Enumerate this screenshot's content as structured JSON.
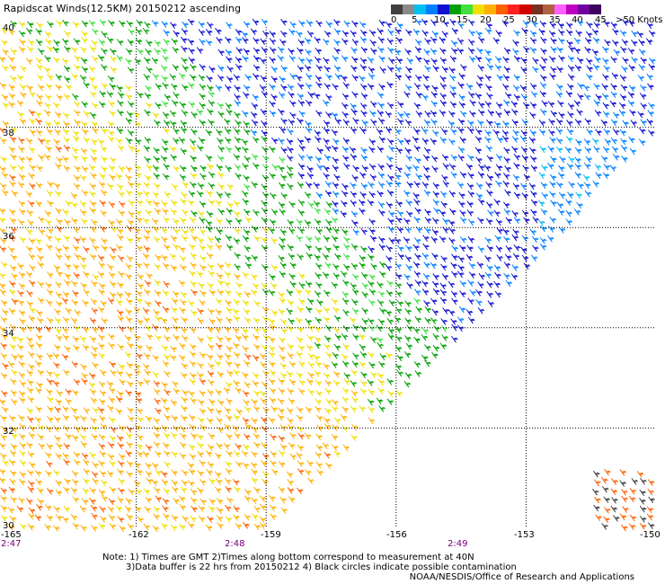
{
  "title": "Rapidscat Winds(12.5KM) 20150212 ascending",
  "colorbar": {
    "colors": [
      "#404040",
      "#8a8a8a",
      "#00c0f0",
      "#0080ff",
      "#1010d0",
      "#00a000",
      "#40e040",
      "#f0e000",
      "#ffb000",
      "#ff6000",
      "#ff2020",
      "#d00000",
      "#7a3020",
      "#b06040",
      "#ff60ff",
      "#c000c0",
      "#7000a0",
      "#400060"
    ],
    "labels": [
      "0",
      "5",
      "10",
      "15",
      "20",
      "25",
      "30",
      "35",
      "40",
      "45",
      ">50 Knots"
    ],
    "units": "Knots"
  },
  "axes": {
    "lon_labels": [
      "-165",
      "-162",
      "-159",
      "-156",
      "-153",
      "-150"
    ],
    "lat_labels": [
      "40",
      "38",
      "36",
      "34",
      "32",
      "30"
    ],
    "lon_range": [
      -165,
      -150
    ],
    "lat_range": [
      30,
      40
    ],
    "grid": true
  },
  "times": [
    "2:47",
    "2:48",
    "2:49"
  ],
  "notes": [
    "Note: 1) Times are GMT 2)Times along bottom correspond to measurement at 40N",
    "3)Data buffer is 22 hrs from 20150212 4) Black circles indicate possible contamination"
  ],
  "credit": "NOAA/NESDIS/Office of Research and Applications"
}
